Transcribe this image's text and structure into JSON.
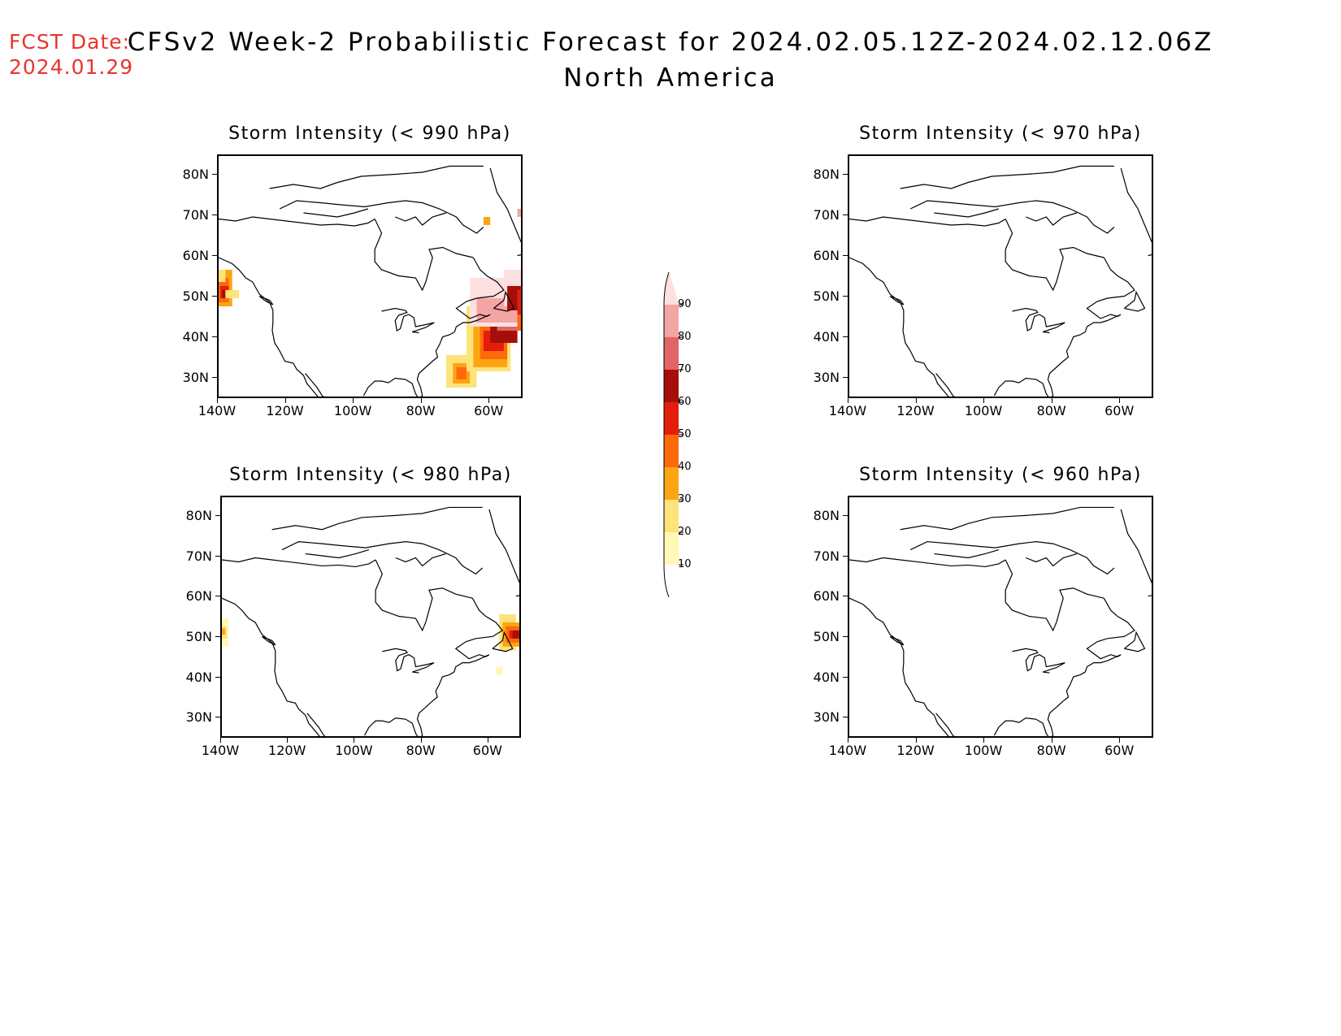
{
  "fcst_date": {
    "label": "FCST Date:",
    "value": "2024.01.29"
  },
  "title": {
    "line1": "CFSv2 Week-2 Probabilistic Forecast for 2024.02.05.12Z-2024.02.12.06Z",
    "line2": "North America"
  },
  "axes": {
    "lat_labels": [
      "80N",
      "70N",
      "60N",
      "50N",
      "40N",
      "30N"
    ],
    "lon_labels": [
      "140W",
      "120W",
      "100W",
      "80W",
      "60W"
    ]
  },
  "panels": [
    {
      "title": "Storm Intensity (< 990 hPa)"
    },
    {
      "title": "Storm Intensity (< 970 hPa)"
    },
    {
      "title": "Storm Intensity (< 980 hPa)"
    },
    {
      "title": "Storm Intensity (< 960 hPa)"
    }
  ],
  "colorbar": {
    "levels": [
      "10",
      "20",
      "30",
      "40",
      "50",
      "60",
      "70",
      "80",
      "90"
    ],
    "colors": [
      "#fff9b5",
      "#fde37a",
      "#fca512",
      "#fd6a0b",
      "#e31e0c",
      "#a60e0b",
      "#e06564",
      "#f3a5a4",
      "#fde0e0"
    ]
  },
  "probability_regions": [
    {
      "panel": "Storm Intensity (< 990 hPa)",
      "region": "Pacific coast, 48N-58N",
      "max_category": "60"
    },
    {
      "panel": "Storm Intensity (< 990 hPa)",
      "region": "Northwest Atlantic off Newfoundland, 28N-55N",
      "max_category": "90"
    },
    {
      "panel": "Storm Intensity (< 980 hPa)",
      "region": "Pacific coast near 50N",
      "max_category": "30"
    },
    {
      "panel": "Storm Intensity (< 980 hPa)",
      "region": "Northwest Atlantic near Newfoundland",
      "max_category": "60"
    }
  ]
}
